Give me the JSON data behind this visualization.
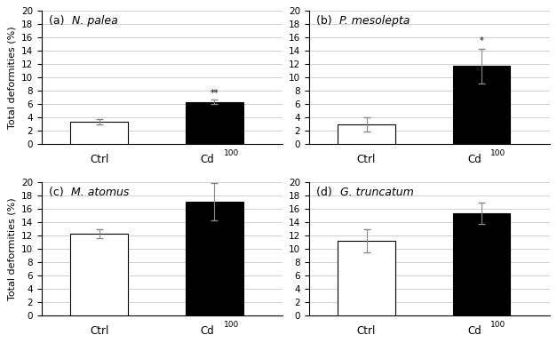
{
  "subplots": [
    {
      "label_prefix": "(a) ",
      "label_italic": "N. palea",
      "ctrl_mean": 3.3,
      "ctrl_err": 0.4,
      "cd_mean": 6.3,
      "cd_err": 0.35,
      "cd_annotation": "**",
      "annotation_yoffset": 0.2
    },
    {
      "label_prefix": "(b) ",
      "label_italic": "P. mesolepta",
      "ctrl_mean": 2.9,
      "ctrl_err": 1.1,
      "cd_mean": 11.7,
      "cd_err": 2.6,
      "cd_annotation": "*",
      "annotation_yoffset": 0.5
    },
    {
      "label_prefix": "(c) ",
      "label_italic": "M. atomus",
      "ctrl_mean": 12.3,
      "ctrl_err": 0.7,
      "cd_mean": 17.1,
      "cd_err": 2.85,
      "cd_annotation": "",
      "annotation_yoffset": 0.0
    },
    {
      "label_prefix": "(d) ",
      "label_italic": "G. truncatum",
      "ctrl_mean": 11.2,
      "ctrl_err": 1.8,
      "cd_mean": 15.4,
      "cd_err": 1.6,
      "cd_annotation": "",
      "annotation_yoffset": 0.0
    }
  ],
  "ctrl_color": "#ffffff",
  "cd_color": "#000000",
  "bar_edge_color": "#000000",
  "bar_width": 0.55,
  "x_ctrl": 0.75,
  "x_cd": 1.85,
  "xlim": [
    0.2,
    2.5
  ],
  "ylim": [
    0,
    20
  ],
  "yticks": [
    0,
    2,
    4,
    6,
    8,
    10,
    12,
    14,
    16,
    18,
    20
  ],
  "ylabel": "Total deformities (%)",
  "xlabel_ctrl": "Ctrl",
  "xlabel_cd": "Cd",
  "cd_subscript": "100",
  "background_color": "#ffffff",
  "grid_color": "#d0d0d0",
  "title_fontsize": 9,
  "ylabel_fontsize": 8,
  "tick_fontsize": 7.5,
  "xtick_fontsize": 8.5,
  "annot_fontsize": 7
}
